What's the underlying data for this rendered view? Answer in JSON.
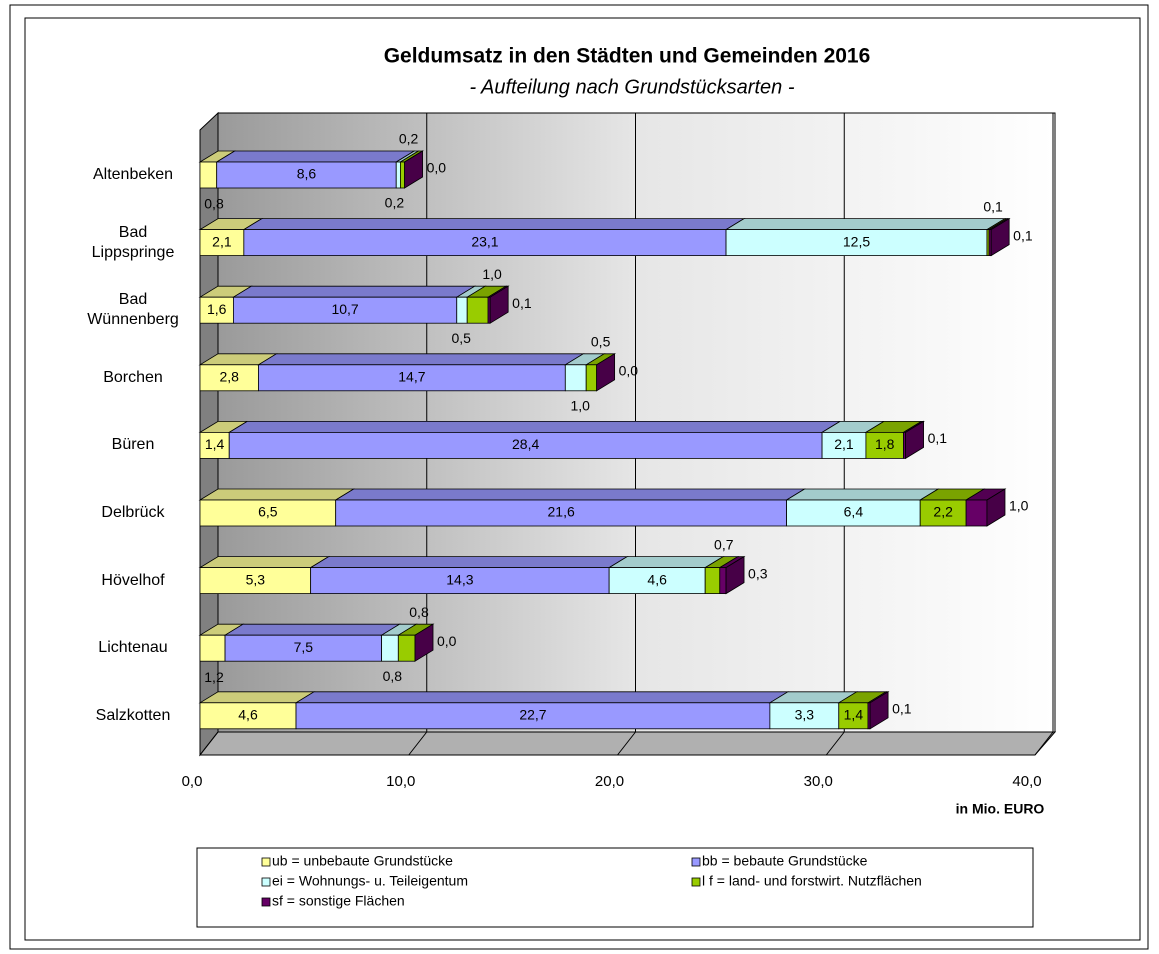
{
  "chart_data": {
    "type": "bar",
    "orientation": "horizontal",
    "stacked": true,
    "three_d": true,
    "title": "Geldumsatz in den Städten und Gemeinden 2016",
    "subtitle": "- Aufteilung nach Grundstücksarten -",
    "x_axis_label": "in Mio. EURO",
    "categories": [
      "Altenbeken",
      "Bad Lippspringe",
      "Bad Wünnenberg",
      "Borchen",
      "Büren",
      "Delbrück",
      "Hövelhof",
      "Lichtenau",
      "Salzkotten"
    ],
    "series": [
      {
        "name": "ub = unbebaute Grundstücke",
        "color": "#ffff99",
        "values": [
          0.8,
          2.1,
          1.6,
          2.8,
          1.4,
          6.5,
          5.3,
          1.2,
          4.6
        ],
        "value_labels": [
          "0,8",
          "2,1",
          "1,6",
          "2,8",
          "1,4",
          "6,5",
          "5,3",
          "1,2",
          "4,6"
        ]
      },
      {
        "name": "bb = bebaute Grundstücke",
        "color": "#9999ff",
        "values": [
          8.6,
          23.1,
          10.7,
          14.7,
          28.4,
          21.6,
          14.3,
          7.5,
          22.7
        ],
        "value_labels": [
          "8,6",
          "23,1",
          "10,7",
          "14,7",
          "28,4",
          "21,6",
          "14,3",
          "7,5",
          "22,7"
        ]
      },
      {
        "name": "ei = Wohnungs- u. Teileigentum",
        "color": "#ccffff",
        "values": [
          0.2,
          12.5,
          0.5,
          1.0,
          2.1,
          6.4,
          4.6,
          0.8,
          3.3
        ],
        "value_labels": [
          "0,2",
          "12,5",
          "0,5",
          "1,0",
          "2,1",
          "6,4",
          "4,6",
          "0,8",
          "3,3"
        ]
      },
      {
        "name": "l f = land- und forstwirt. Nutzflächen",
        "color": "#99cc00",
        "values": [
          0.2,
          0.1,
          1.0,
          0.5,
          1.8,
          2.2,
          0.7,
          0.8,
          1.4
        ],
        "value_labels": [
          "0,2",
          "0,1",
          "1,0",
          "0,5",
          "1,8",
          "2,2",
          "0,7",
          "0,8",
          "1,4"
        ]
      },
      {
        "name": "sf = sonstige Flächen",
        "color": "#660066",
        "values": [
          0.0,
          0.1,
          0.1,
          0.0,
          0.1,
          1.0,
          0.3,
          0.0,
          0.1
        ],
        "value_labels": [
          "0,0",
          "0,1",
          "0,1",
          "0,0",
          "0,1",
          "1,0",
          "0,3",
          "0,0",
          "0,1"
        ]
      }
    ],
    "xlim": [
      0,
      40
    ],
    "xticks": [
      {
        "value": 0,
        "label": "0,0"
      },
      {
        "value": 10,
        "label": "10,0"
      },
      {
        "value": 20,
        "label": "20,0"
      },
      {
        "value": 30,
        "label": "30,0"
      },
      {
        "value": 40,
        "label": "40,0"
      }
    ],
    "grid": true,
    "legend": "bottom"
  }
}
